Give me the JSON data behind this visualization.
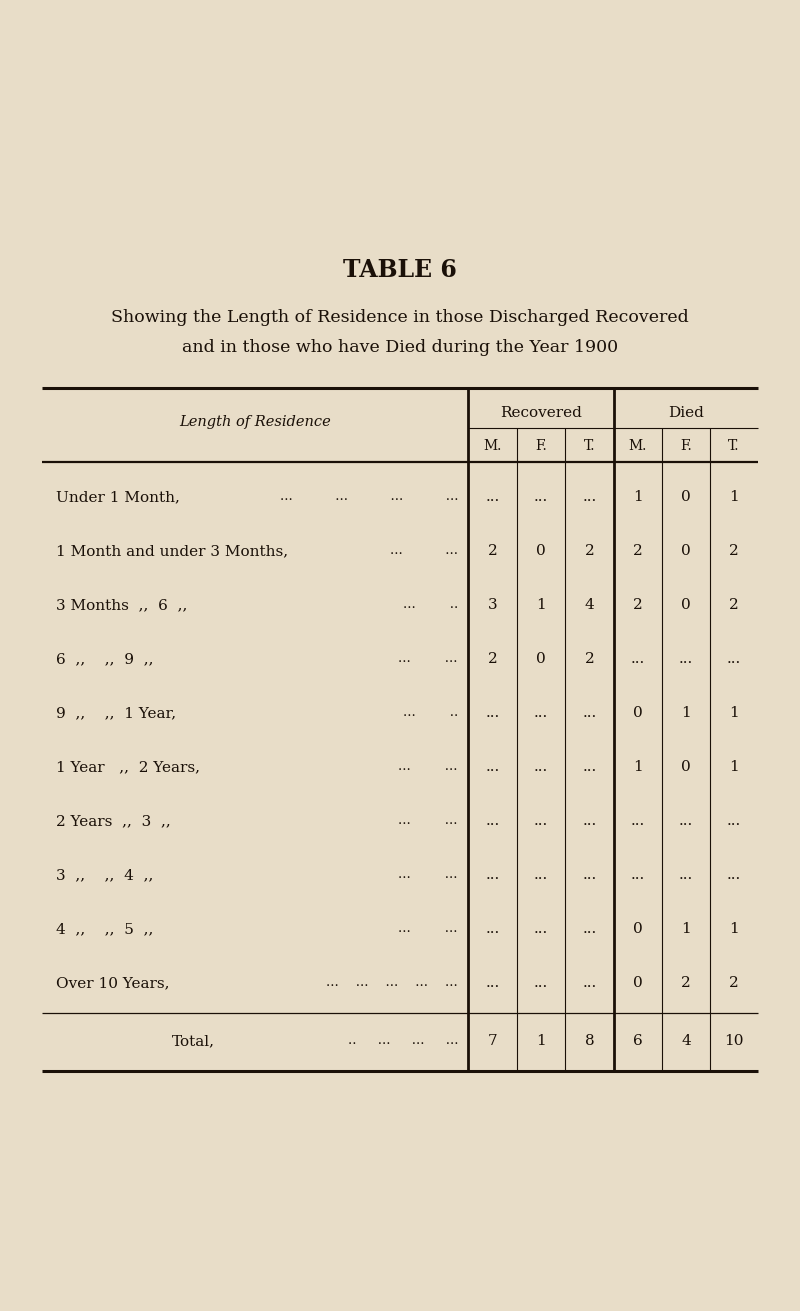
{
  "title": "TABLE 6",
  "subtitle_line1": "Showing the Length of Residence in those Discharged Recovered",
  "subtitle_line2": "and in those who have Died during the Year 1900",
  "bg_color": "#e8ddc8",
  "text_color": "#1a1008",
  "col_header_1": "Recovered",
  "col_header_2": "Died",
  "sub_headers": [
    "M.",
    "F.",
    "T.",
    "M.",
    "F.",
    "T."
  ],
  "row_label_col": "Length of Residence",
  "rows": [
    {
      "label": "Under 1 Month,",
      "dots": "...          ...          ...          ...",
      "rec_m": "...",
      "rec_f": "...",
      "rec_t": "...",
      "died_m": "1",
      "died_f": "0",
      "died_t": "1"
    },
    {
      "label": "1 Month and under 3 Months,",
      "dots": "...          ...",
      "rec_m": "2",
      "rec_f": "0",
      "rec_t": "2",
      "died_m": "2",
      "died_f": "0",
      "died_t": "2"
    },
    {
      "label": "3 Months  ,,  6  ,,",
      "dots": "...        ..",
      "rec_m": "3",
      "rec_f": "1",
      "rec_t": "4",
      "died_m": "2",
      "died_f": "0",
      "died_t": "2"
    },
    {
      "label": "6  ,,    ,,  9  ,,",
      "dots": "...        ...",
      "rec_m": "2",
      "rec_f": "0",
      "rec_t": "2",
      "died_m": "...",
      "died_f": "...",
      "died_t": "..."
    },
    {
      "label": "9  ,,    ,,  1 Year,",
      "dots": "...        ..",
      "rec_m": "...",
      "rec_f": "...",
      "rec_t": "...",
      "died_m": "0",
      "died_f": "1",
      "died_t": "1"
    },
    {
      "label": "1 Year   ,,  2 Years,",
      "dots": "...        ...",
      "rec_m": "...",
      "rec_f": "...",
      "rec_t": "...",
      "died_m": "1",
      "died_f": "0",
      "died_t": "1"
    },
    {
      "label": "2 Years  ,,  3  ,,",
      "dots": "...        ...",
      "rec_m": "...",
      "rec_f": "...",
      "rec_t": "...",
      "died_m": "...",
      "died_f": "...",
      "died_t": "..."
    },
    {
      "label": "3  ,,    ,,  4  ,,",
      "dots": "...        ...",
      "rec_m": "...",
      "rec_f": "...",
      "rec_t": "...",
      "died_m": "...",
      "died_f": "...",
      "died_t": "..."
    },
    {
      "label": "4  ,,    ,,  5  ,,",
      "dots": "...        ...",
      "rec_m": "...",
      "rec_f": "...",
      "rec_t": "...",
      "died_m": "0",
      "died_f": "1",
      "died_t": "1"
    },
    {
      "label": "Over 10 Years,",
      "dots": "...    ...    ...    ...    ...",
      "rec_m": "...",
      "rec_f": "...",
      "rec_t": "...",
      "died_m": "0",
      "died_f": "2",
      "died_t": "2"
    }
  ],
  "total_label": "Total,",
  "total_dots": "..     ...     ...     ...",
  "total_rec_m": "7",
  "total_rec_f": "1",
  "total_rec_t": "8",
  "total_died_m": "6",
  "total_died_f": "4",
  "total_died_t": "10"
}
